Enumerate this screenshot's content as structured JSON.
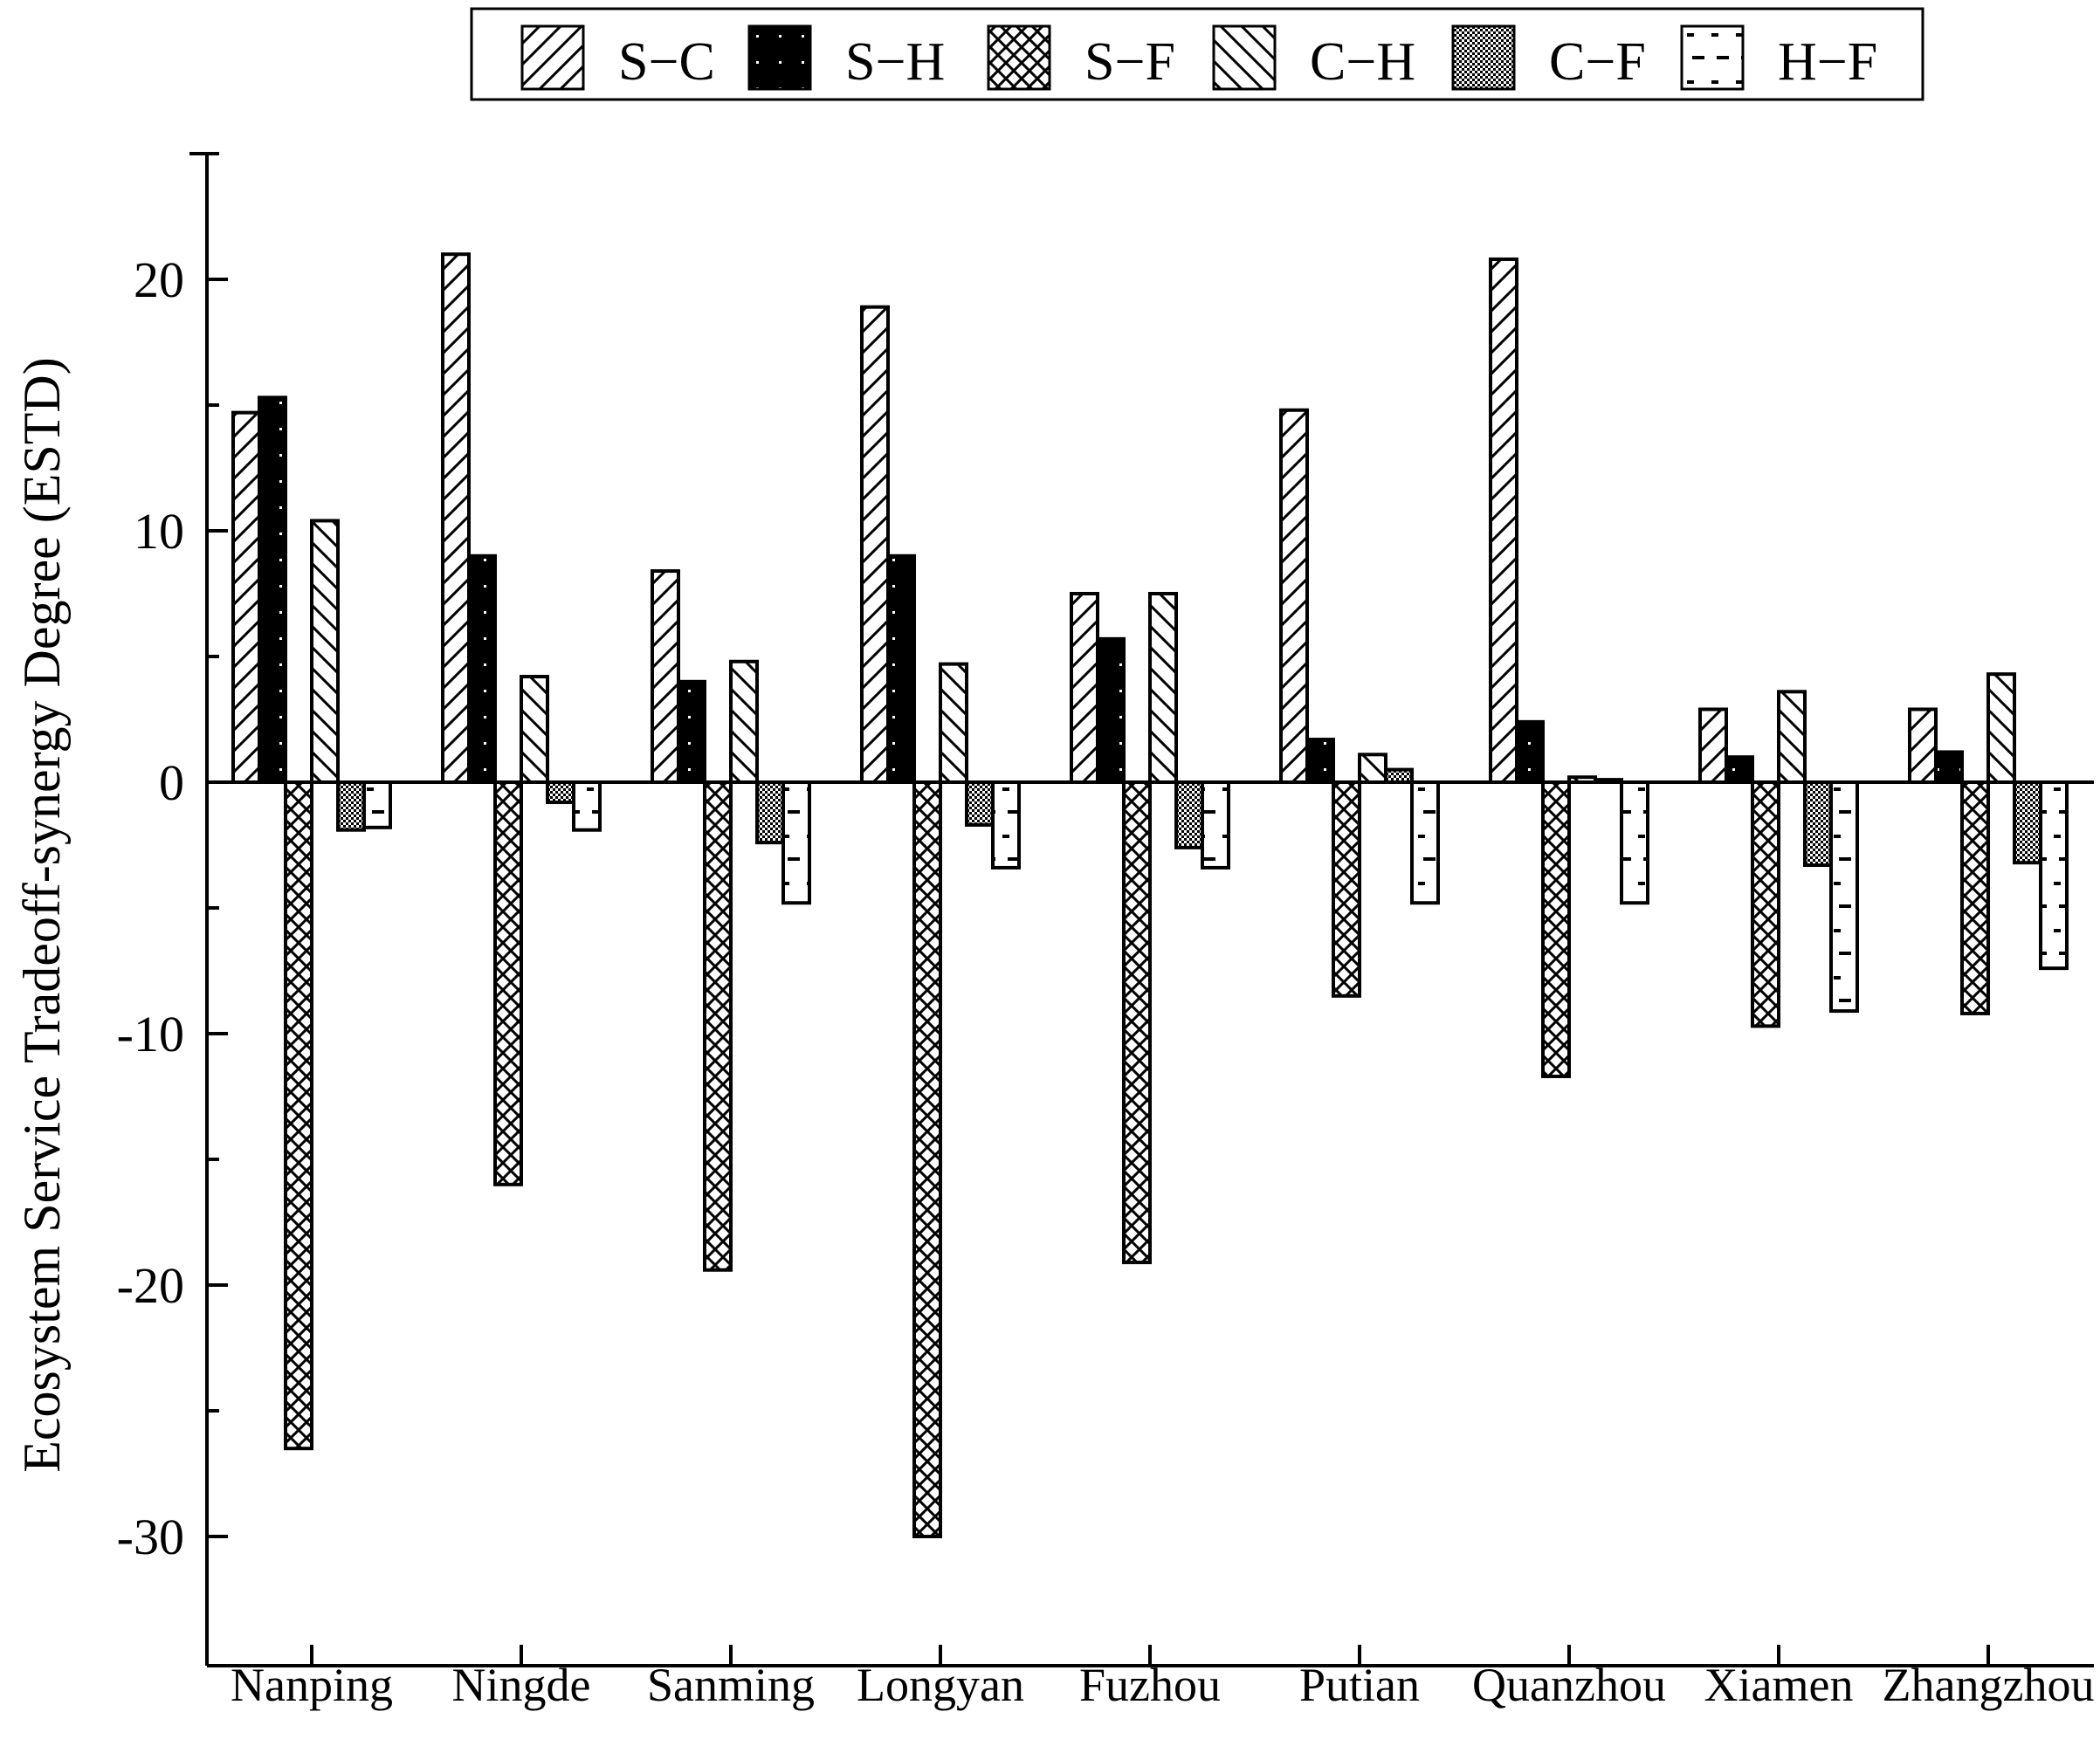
{
  "chart_data": {
    "type": "bar",
    "title": "",
    "xlabel": "",
    "ylabel": "Ecosystem Service Tradeoff-synergy Degree (ESTD)",
    "ylim": [
      -35,
      25
    ],
    "yticks": [
      -30,
      -20,
      -10,
      0,
      10,
      20
    ],
    "ytick_labels": [
      "-30",
      "-20",
      "-10",
      "0",
      "10",
      "20"
    ],
    "grid": false,
    "legend_position": "top",
    "categories": [
      "Nanping",
      "Ningde",
      "Sanming",
      "Longyan",
      "Fuzhou",
      "Putian",
      "Quanzhou",
      "Xiamen",
      "Zhangzhou"
    ],
    "series": [
      {
        "name": "S−C",
        "pattern": "diag-up",
        "values": [
          14.7,
          21.0,
          8.4,
          18.9,
          7.5,
          14.8,
          20.8,
          2.9,
          2.9
        ]
      },
      {
        "name": "S−H",
        "pattern": "solid-dots",
        "values": [
          15.3,
          9.0,
          4.0,
          9.0,
          5.7,
          1.7,
          2.4,
          1.0,
          1.2
        ]
      },
      {
        "name": "S−F",
        "pattern": "crosshatch",
        "values": [
          -26.5,
          -16.0,
          -19.4,
          -30.0,
          -19.1,
          -8.5,
          -11.7,
          -9.7,
          -9.2
        ]
      },
      {
        "name": "C−H",
        "pattern": "diag-down",
        "values": [
          10.4,
          4.2,
          4.8,
          4.7,
          7.5,
          1.1,
          0.2,
          3.6,
          4.3
        ]
      },
      {
        "name": "C−F",
        "pattern": "dense-check",
        "values": [
          -1.9,
          -0.8,
          -2.4,
          -1.7,
          -2.6,
          0.5,
          0.1,
          -3.3,
          -3.2
        ]
      },
      {
        "name": "H−F",
        "pattern": "dashes",
        "values": [
          -1.8,
          -1.9,
          -4.8,
          -3.4,
          -3.4,
          -4.8,
          -4.8,
          -9.1,
          -7.4
        ]
      }
    ]
  }
}
